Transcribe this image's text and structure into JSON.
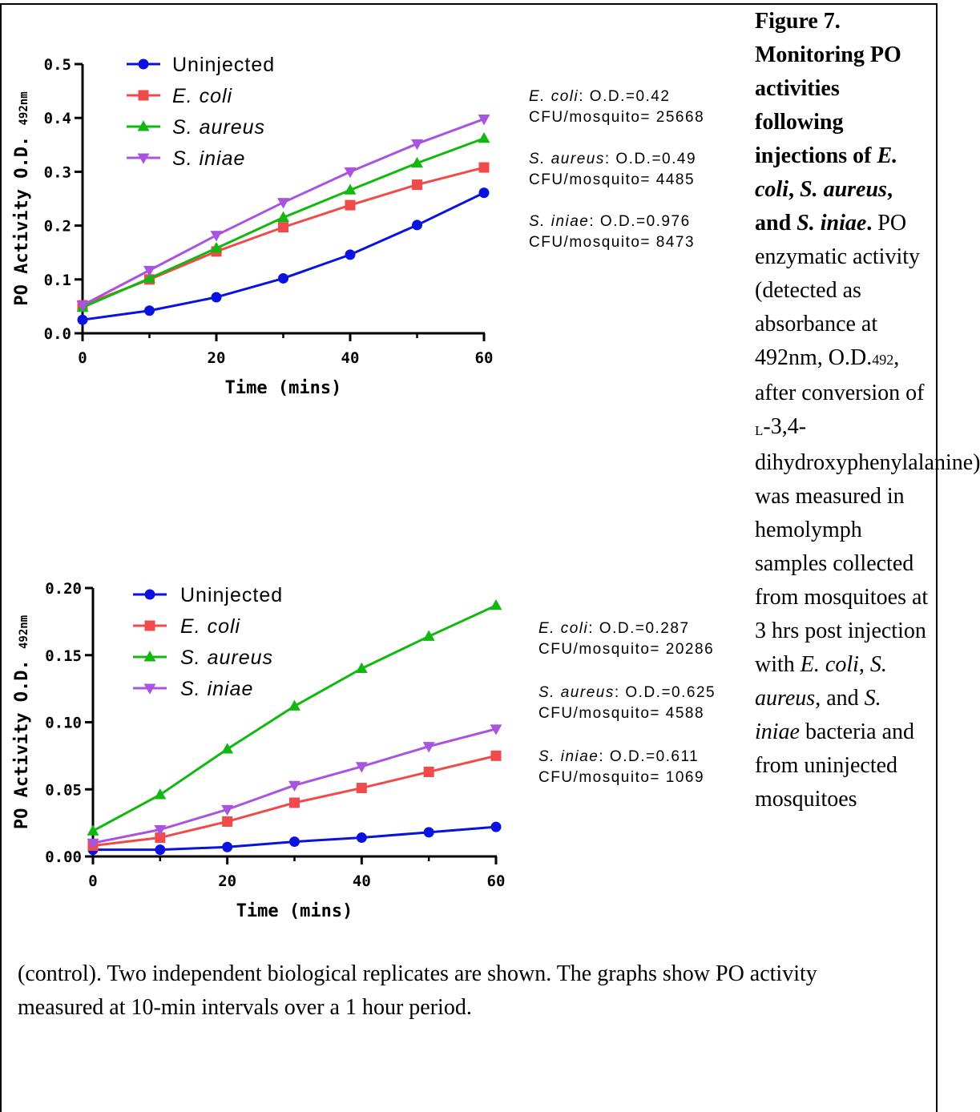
{
  "figure": {
    "label": "Figure 7.",
    "title_parts": [
      "Monitoring PO activities following injections of ",
      "E. coli",
      ", ",
      "S. aureus",
      ", and ",
      "S. iniae",
      "."
    ],
    "caption_col": {
      "p1": "PO enzymatic activity (detected as absorbance at 492nm, O.D.",
      "p1_sub": "492",
      "p2": ", after conversion of ",
      "p2_sub": "L",
      "p3": "-3,4-dihydroxyphenylalanine) was measured in hemolymph samples collected from mosquitoes at 3 hrs post injection with ",
      "i1": "E. coli",
      "c1": ", ",
      "i2": "S. aureus",
      "c2": ", and ",
      "i3": "S. iniae",
      "p4": " bacteria and from uninjected mosquitoes"
    },
    "caption_bottom": "(control). Two independent biological replicates are shown. The graphs show PO activity measured at 10-min intervals over a 1 hour period."
  },
  "colors": {
    "Uninjected": "#0a12e0",
    "E. coli": "#f04a4a",
    "S. aureus": "#11b811",
    "S. iniae": "#a854e0"
  },
  "chart_data": [
    {
      "type": "line",
      "xlabel": "Time (mins)",
      "ylabel": "PO Activity O.D.",
      "ylabel_sub": "492nm",
      "x": [
        0,
        10,
        20,
        30,
        40,
        50,
        60
      ],
      "xlim": [
        0,
        60
      ],
      "ylim": [
        0,
        0.5
      ],
      "xticks": [
        "0",
        "20",
        "40",
        "60"
      ],
      "yticks": [
        "0.0",
        "0.1",
        "0.2",
        "0.3",
        "0.4",
        "0.5"
      ],
      "series": [
        {
          "name": "Uninjected",
          "marker": "circle",
          "values": [
            0.025,
            0.042,
            0.067,
            0.102,
            0.146,
            0.201,
            0.261
          ]
        },
        {
          "name": "E. coli",
          "marker": "square",
          "values": [
            0.052,
            0.1,
            0.152,
            0.197,
            0.238,
            0.276,
            0.308
          ]
        },
        {
          "name": "S. aureus",
          "marker": "triangle",
          "values": [
            0.048,
            0.102,
            0.158,
            0.215,
            0.266,
            0.316,
            0.362
          ]
        },
        {
          "name": "S. iniae",
          "marker": "triangle-down",
          "values": [
            0.052,
            0.117,
            0.182,
            0.243,
            0.3,
            0.352,
            0.398
          ]
        }
      ],
      "annotations": [
        {
          "species": "E. coli",
          "line1": ": O.D.=0.42",
          "line2": "CFU/mosquito= 25668"
        },
        {
          "species": "S. aureus",
          "line1": ": O.D.=0.49",
          "line2": "CFU/mosquito= 4485"
        },
        {
          "species": "S. iniae",
          "line1": ": O.D.=0.976",
          "line2": "CFU/mosquito= 8473"
        }
      ]
    },
    {
      "type": "line",
      "xlabel": "Time (mins)",
      "ylabel": "PO Activity O.D.",
      "ylabel_sub": "492nm",
      "x": [
        0,
        10,
        20,
        30,
        40,
        50,
        60
      ],
      "xlim": [
        0,
        60
      ],
      "ylim": [
        0,
        0.2
      ],
      "xticks": [
        "0",
        "20",
        "40",
        "60"
      ],
      "yticks": [
        "0.00",
        "0.05",
        "0.10",
        "0.15",
        "0.20"
      ],
      "series": [
        {
          "name": "Uninjected",
          "marker": "circle",
          "values": [
            0.005,
            0.005,
            0.007,
            0.011,
            0.014,
            0.018,
            0.022
          ]
        },
        {
          "name": "E. coli",
          "marker": "square",
          "values": [
            0.008,
            0.014,
            0.026,
            0.04,
            0.051,
            0.063,
            0.075
          ]
        },
        {
          "name": "S. aureus",
          "marker": "triangle",
          "values": [
            0.019,
            0.046,
            0.08,
            0.112,
            0.14,
            0.164,
            0.187
          ]
        },
        {
          "name": "S. iniae",
          "marker": "triangle-down",
          "values": [
            0.01,
            0.02,
            0.035,
            0.053,
            0.067,
            0.082,
            0.095
          ]
        }
      ],
      "annotations": [
        {
          "species": "E. coli",
          "line1": ": O.D.=0.287",
          "line2": "CFU/mosquito= 20286"
        },
        {
          "species": "S. aureus",
          "line1": ": O.D.=0.625",
          "line2": "CFU/mosquito= 4588"
        },
        {
          "species": "S. iniae",
          "line1": ": O.D.=0.611",
          "line2": "CFU/mosquito= 1069"
        }
      ]
    }
  ]
}
